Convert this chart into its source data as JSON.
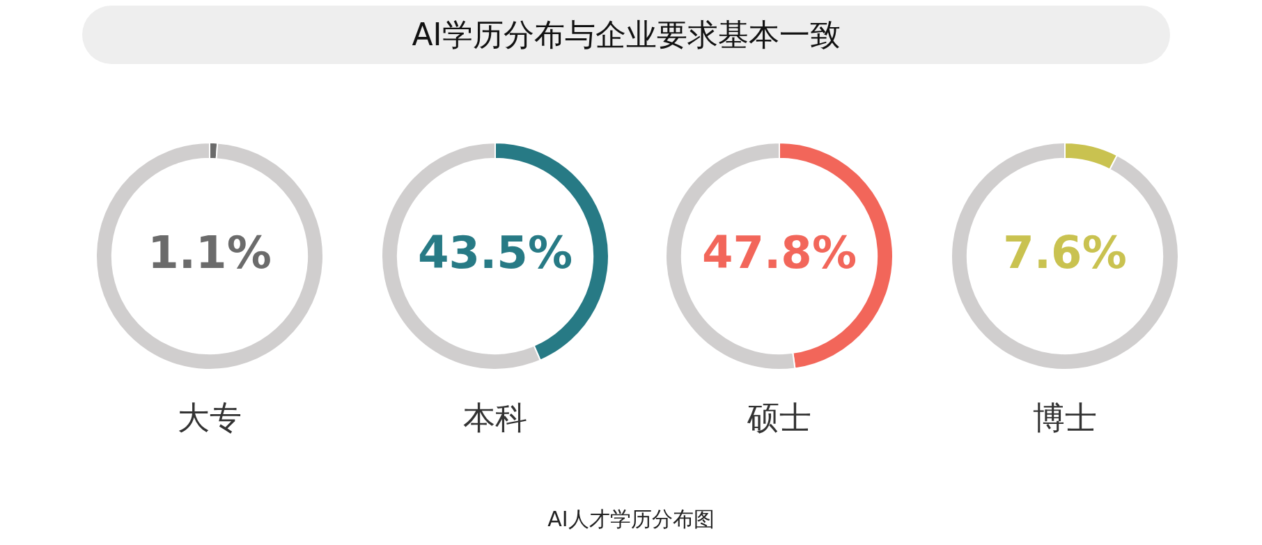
{
  "chart_data": [
    {
      "type": "other",
      "title": "AI学历分布与企业要求基本一致",
      "annotations": [
        "AI人才学历分布图"
      ]
    },
    {
      "type": "donut",
      "title": "大专",
      "categories": [
        null,
        null
      ],
      "values": [
        1.1,
        98.9
      ],
      "colors": [
        "#6b6b6b",
        "#d0cece"
      ],
      "value_labels": [
        "1.1%",
        null
      ]
    },
    {
      "type": "donut",
      "title": "本科",
      "categories": [
        null,
        null
      ],
      "values": [
        43.5,
        56.5
      ],
      "colors": [
        "#277a85",
        "#d0cece"
      ],
      "value_labels": [
        "43.5%",
        null
      ]
    },
    {
      "type": "donut",
      "title": "硕士",
      "categories": [
        null,
        null
      ],
      "values": [
        47.8,
        52.2
      ],
      "colors": [
        "#f2665a",
        "#d0cece"
      ],
      "value_labels": [
        "47.8%",
        null
      ]
    },
    {
      "type": "donut",
      "title": "博士",
      "categories": [
        null,
        null
      ],
      "values": [
        7.6,
        92.4
      ],
      "colors": [
        "#c9c250",
        "#d0cece"
      ],
      "value_labels": [
        "7.6%",
        null
      ]
    }
  ]
}
